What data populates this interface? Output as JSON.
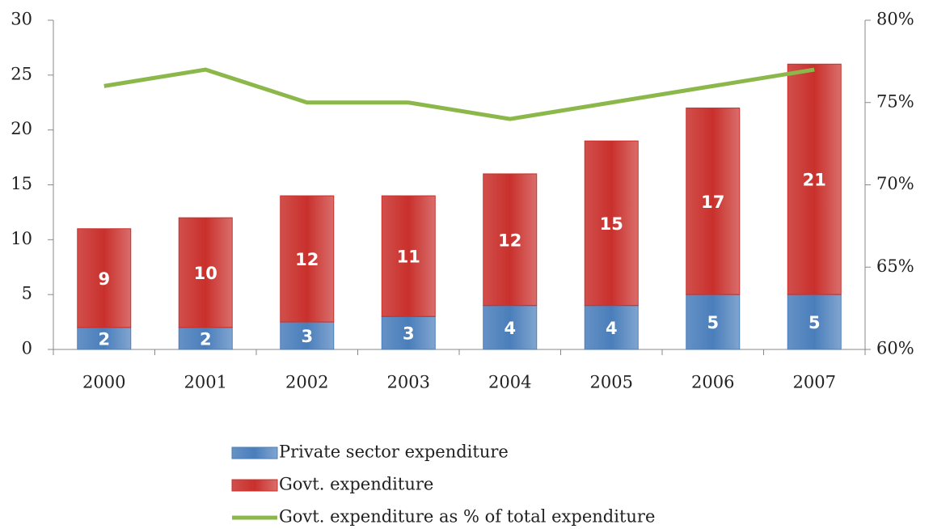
{
  "chart_data": {
    "type": "bar",
    "stacked": true,
    "categories": [
      "2000",
      "2001",
      "2002",
      "2003",
      "2004",
      "2005",
      "2006",
      "2007"
    ],
    "series": [
      {
        "name": "Private sector expenditure",
        "color": "#4a7ebb",
        "values": [
          2,
          2,
          2.5,
          3,
          4,
          4,
          5,
          5
        ],
        "value_labels": [
          "2",
          "2",
          "3",
          "3",
          "4",
          "4",
          "5",
          "5"
        ]
      },
      {
        "name": "Govt. expenditure",
        "color": "#c9302c",
        "values": [
          9,
          10,
          11.5,
          11,
          12,
          15,
          17,
          21
        ],
        "value_labels": [
          "9",
          "10",
          "12",
          "11",
          "12",
          "15",
          "17",
          "21"
        ]
      },
      {
        "name": "Govt. expenditure as % of total expenditure",
        "color": "#8cb84b",
        "type": "line",
        "axis": "y2",
        "values": [
          76,
          77,
          75,
          75,
          74,
          75,
          76,
          77
        ]
      }
    ],
    "ylim": [
      0,
      30
    ],
    "yticks": [
      0,
      5,
      10,
      15,
      20,
      25,
      30
    ],
    "y2lim": [
      60,
      80
    ],
    "y2ticks": [
      {
        "value": 60,
        "label": "60%"
      },
      {
        "value": 65,
        "label": "65%"
      },
      {
        "value": 70,
        "label": "70%"
      },
      {
        "value": 75,
        "label": "75%"
      },
      {
        "value": 80,
        "label": "80%"
      }
    ],
    "legend": "bottom"
  }
}
